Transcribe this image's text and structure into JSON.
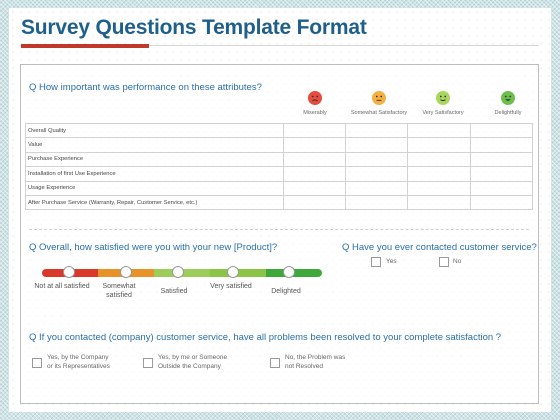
{
  "title": "Survey Questions Template Format",
  "question1": "Q  How important was performance on these attributes?",
  "ratings": [
    {
      "label": "Miserably",
      "icon": "frown-face-icon",
      "color": "#e74c3c"
    },
    {
      "label": "Somewhat Satisfactory",
      "icon": "neutral-face-icon",
      "color": "#f5b041"
    },
    {
      "label": "Very Satisfactory",
      "icon": "smile-face-icon",
      "color": "#a9d65f"
    },
    {
      "label": "Delightfully",
      "icon": "grin-face-icon",
      "color": "#6cc04a"
    }
  ],
  "attributes": [
    "Overall Quality",
    "Value",
    "Purchase Experience",
    "Installation of first Use Experience",
    "Usage Experience",
    "After Purchase Service (Warranty, Repair, Customer Service, etc.)"
  ],
  "question2": "Q  Overall, how satisfied were you with your new [Product]?",
  "scale": [
    {
      "label": "Not at all satisfied"
    },
    {
      "label": "Somewhat satisfied"
    },
    {
      "label": "Satisfied"
    },
    {
      "label": "Very satisfied"
    },
    {
      "label": "Delighted"
    }
  ],
  "scale_colors": [
    "#d9382b",
    "#e8922a",
    "#9ccc5a",
    "#8cc448",
    "#3ea83a"
  ],
  "question3": "Q  Have you ever contacted customer service?",
  "q3_options": [
    "Yes",
    "No"
  ],
  "question4": "Q  If you contacted (company) customer service, have all problems been resolved to your complete satisfaction ?",
  "q4_options": [
    {
      "line1": "Yes, by the Company",
      "line2": "or its Representatives"
    },
    {
      "line1": "Yes, by me or Someone",
      "line2": "Outside the  Company"
    },
    {
      "line1": "No, the Problem was",
      "line2": "not Resolved"
    }
  ]
}
